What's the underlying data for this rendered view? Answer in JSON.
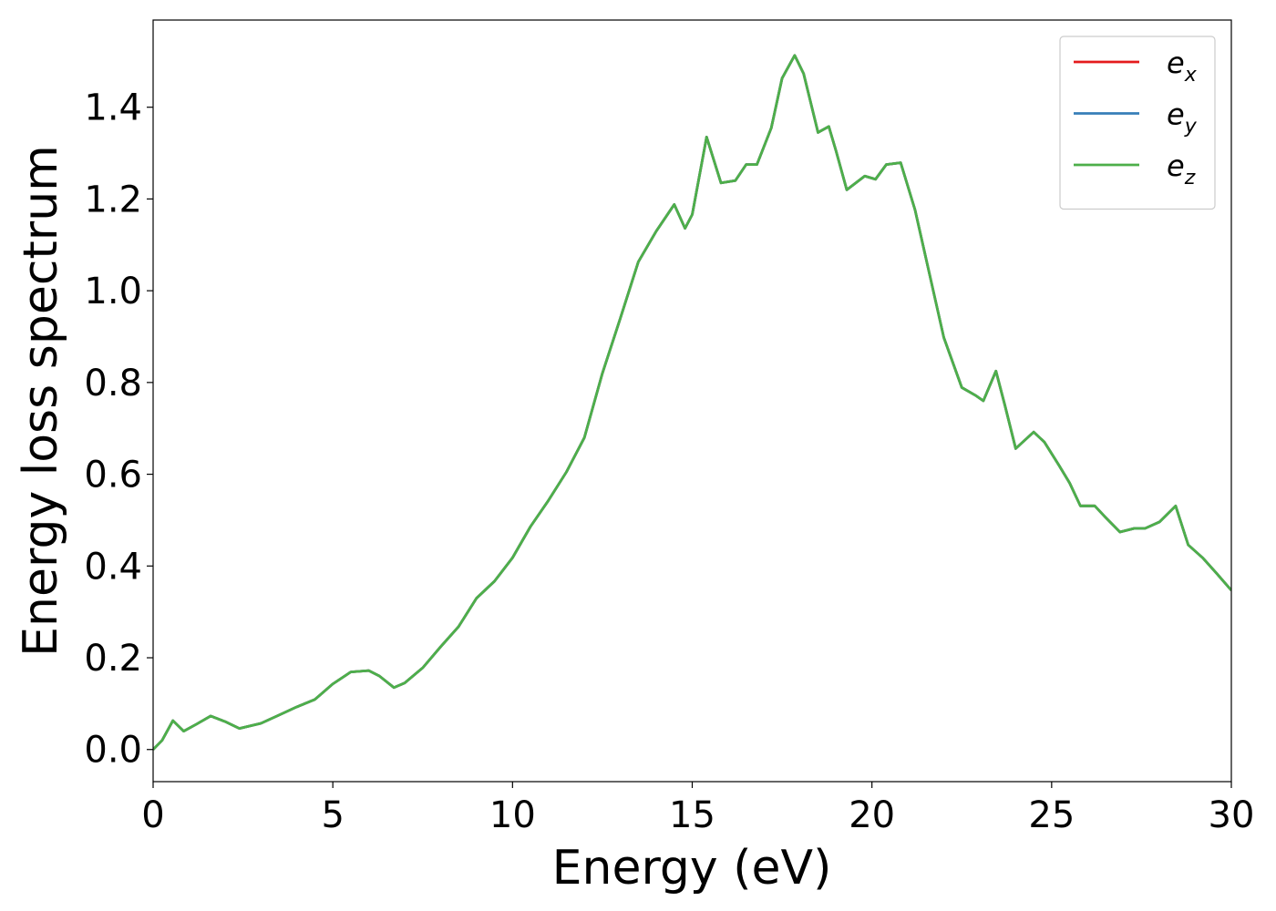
{
  "chart_data": {
    "type": "line",
    "xlabel": "Energy (eV)",
    "ylabel": "Energy loss spectrum",
    "x": [
      0,
      0.25,
      0.55,
      0.85,
      1.2,
      1.6,
      2.0,
      2.4,
      3.0,
      3.5,
      4.0,
      4.5,
      5.0,
      5.5,
      6.0,
      6.3,
      6.7,
      7.0,
      7.5,
      8.0,
      8.5,
      9.0,
      9.5,
      10.0,
      10.5,
      11.0,
      11.5,
      12.0,
      12.5,
      13.0,
      13.5,
      14.0,
      14.5,
      14.8,
      15.0,
      15.4,
      15.8,
      16.2,
      16.5,
      16.8,
      17.2,
      17.5,
      17.85,
      18.1,
      18.5,
      18.8,
      19.0,
      19.3,
      19.8,
      20.1,
      20.4,
      20.8,
      21.2,
      21.6,
      22.0,
      22.5,
      22.9,
      23.1,
      23.45,
      23.7,
      24.0,
      24.5,
      24.8,
      25.2,
      25.5,
      25.8,
      26.2,
      26.5,
      26.9,
      27.3,
      27.6,
      28.0,
      28.45,
      28.8,
      29.2,
      29.6,
      30
    ],
    "series": [
      {
        "name": "e",
        "subscript": "x",
        "color": "#e41a1c",
        "values": [
          0,
          0.02,
          0.063,
          0.04,
          0.055,
          0.073,
          0.061,
          0.046,
          0.057,
          0.075,
          0.093,
          0.109,
          0.143,
          0.169,
          0.172,
          0.16,
          0.135,
          0.145,
          0.178,
          0.224,
          0.268,
          0.33,
          0.367,
          0.418,
          0.486,
          0.543,
          0.605,
          0.68,
          0.82,
          0.94,
          1.063,
          1.13,
          1.188,
          1.136,
          1.166,
          1.335,
          1.235,
          1.24,
          1.275,
          1.275,
          1.355,
          1.463,
          1.513,
          1.473,
          1.345,
          1.358,
          1.305,
          1.22,
          1.25,
          1.243,
          1.275,
          1.279,
          1.176,
          1.037,
          0.898,
          0.789,
          0.771,
          0.76,
          0.825,
          0.75,
          0.656,
          0.692,
          0.67,
          0.62,
          0.581,
          0.531,
          0.531,
          0.506,
          0.474,
          0.482,
          0.482,
          0.496,
          0.531,
          0.446,
          0.418,
          0.383,
          0.347
        ]
      },
      {
        "name": "e",
        "subscript": "y",
        "color": "#377eb8",
        "values": [
          0,
          0.02,
          0.063,
          0.04,
          0.055,
          0.073,
          0.061,
          0.046,
          0.057,
          0.075,
          0.093,
          0.109,
          0.143,
          0.169,
          0.172,
          0.16,
          0.135,
          0.145,
          0.178,
          0.224,
          0.268,
          0.33,
          0.367,
          0.418,
          0.486,
          0.543,
          0.605,
          0.68,
          0.82,
          0.94,
          1.063,
          1.13,
          1.188,
          1.136,
          1.166,
          1.335,
          1.235,
          1.24,
          1.275,
          1.275,
          1.355,
          1.463,
          1.513,
          1.473,
          1.345,
          1.358,
          1.305,
          1.22,
          1.25,
          1.243,
          1.275,
          1.279,
          1.176,
          1.037,
          0.898,
          0.789,
          0.771,
          0.76,
          0.825,
          0.75,
          0.656,
          0.692,
          0.67,
          0.62,
          0.581,
          0.531,
          0.531,
          0.506,
          0.474,
          0.482,
          0.482,
          0.496,
          0.531,
          0.446,
          0.418,
          0.383,
          0.347
        ]
      },
      {
        "name": "e",
        "subscript": "z",
        "color": "#4daf4a",
        "values": [
          0,
          0.02,
          0.063,
          0.04,
          0.055,
          0.073,
          0.061,
          0.046,
          0.057,
          0.075,
          0.093,
          0.109,
          0.143,
          0.169,
          0.172,
          0.16,
          0.135,
          0.145,
          0.178,
          0.224,
          0.268,
          0.33,
          0.367,
          0.418,
          0.486,
          0.543,
          0.605,
          0.68,
          0.82,
          0.94,
          1.063,
          1.13,
          1.188,
          1.136,
          1.166,
          1.335,
          1.235,
          1.24,
          1.275,
          1.275,
          1.355,
          1.463,
          1.513,
          1.473,
          1.345,
          1.358,
          1.305,
          1.22,
          1.25,
          1.243,
          1.275,
          1.279,
          1.176,
          1.037,
          0.898,
          0.789,
          0.771,
          0.76,
          0.825,
          0.75,
          0.656,
          0.692,
          0.67,
          0.62,
          0.581,
          0.531,
          0.531,
          0.506,
          0.474,
          0.482,
          0.482,
          0.496,
          0.531,
          0.446,
          0.418,
          0.383,
          0.347
        ]
      }
    ],
    "xlim": [
      0,
      30
    ],
    "xticks": [
      0,
      5,
      10,
      15,
      20,
      25,
      30
    ],
    "ylim": [
      -0.07,
      1.59
    ],
    "yticks": [
      {
        "value": 0,
        "label": "0.0"
      },
      0.2,
      0.4,
      0.6,
      0.8,
      {
        "value": 1,
        "label": "1.0"
      },
      1.2,
      1.4
    ],
    "grid": false,
    "legend": "upper right"
  }
}
